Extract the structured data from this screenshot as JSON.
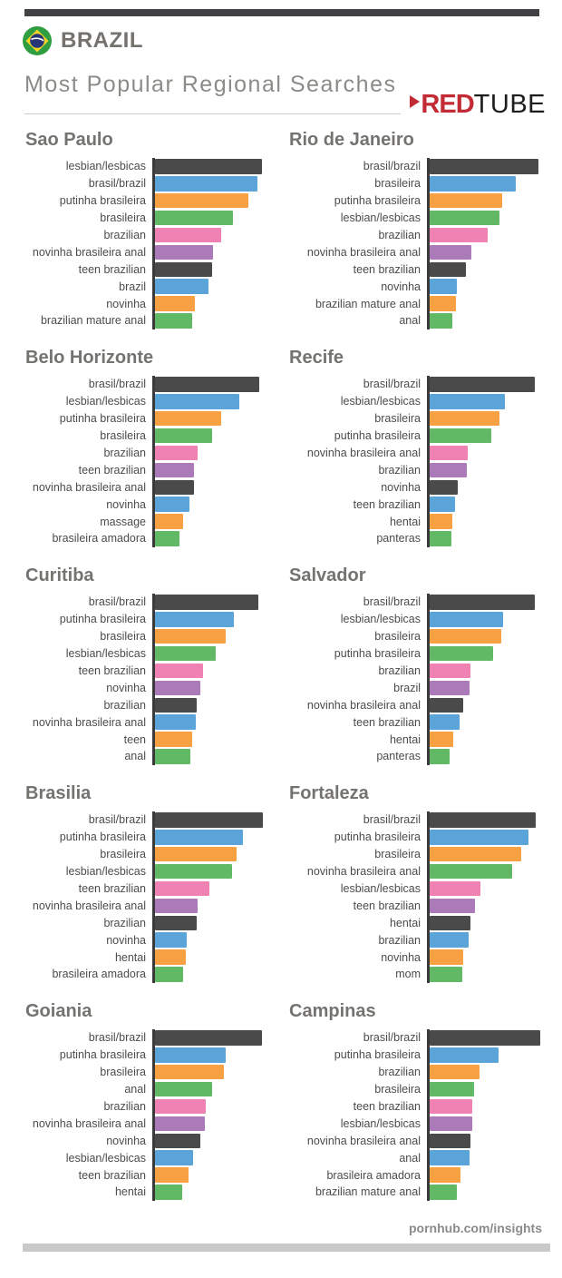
{
  "header": {
    "brand": "BRAZIL",
    "subtitle": "Most Popular Regional Searches",
    "flag_icon": "brazil-flag-icon",
    "logo": {
      "part1": "RED",
      "part2": "TUBE",
      "play_icon": "play-triangle-icon"
    }
  },
  "footer": {
    "url_text": "pornhub.com/insights"
  },
  "colors": {
    "topbar": "#414042",
    "bottom_bar": "#c9c9c9",
    "chart_title_gray": "#757370",
    "subtitle_gray": "#8b8b87",
    "label_gray": "#4c4c4c",
    "axis": "#3a3a3a",
    "logo_red": "#c22b33",
    "logo_dark": "#1d1d1b",
    "flag_green": "#2f9e41",
    "flag_yellow": "#f6d32b",
    "flag_blue": "#253575",
    "bar_palette": {
      "dark": "#4a4a4a",
      "blue": "#5ba4d9",
      "orange": "#f7a143",
      "green": "#62b965",
      "pink": "#ef82b3",
      "purple": "#ab7ab8"
    },
    "bar_color_cycle": [
      "dark",
      "blue",
      "orange",
      "green",
      "pink",
      "purple"
    ]
  },
  "chart_data": [
    {
      "type": "bar",
      "title": "Sao Paulo",
      "orientation": "horizontal",
      "unit": "relative search volume (bar length in px; no numeric axis shown)",
      "categories": [
        "lesbian/lesbicas",
        "brasil/brazil",
        "putinha brasileira",
        "brasileira",
        "brazilian",
        "novinha brasileira anal",
        "teen brazilian",
        "brazil",
        "novinha",
        "brazilian mature anal"
      ],
      "values": [
        118,
        113,
        103,
        86,
        73,
        64,
        63,
        59,
        44,
        41
      ]
    },
    {
      "type": "bar",
      "title": "Rio de Janeiro",
      "orientation": "horizontal",
      "unit": "relative search volume (bar length in px; no numeric axis shown)",
      "categories": [
        "brasil/brazil",
        "brasileira",
        "putinha brasileira",
        "lesbian/lesbicas",
        "brazilian",
        "novinha brasileira anal",
        "teen brazilian",
        "novinha",
        "brazilian mature anal",
        "anal"
      ],
      "values": [
        120,
        95,
        80,
        77,
        64,
        46,
        40,
        30,
        29,
        25
      ]
    },
    {
      "type": "bar",
      "title": "Belo Horizonte",
      "orientation": "horizontal",
      "unit": "relative search volume (bar length in px; no numeric axis shown)",
      "categories": [
        "brasil/brazil",
        "lesbian/lesbicas",
        "putinha brasileira",
        "brasileira",
        "brazilian",
        "teen brazilian",
        "novinha brasileira anal",
        "novinha",
        "massage",
        "brasileira amadora"
      ],
      "values": [
        115,
        93,
        73,
        63,
        47,
        43,
        43,
        38,
        31,
        27
      ]
    },
    {
      "type": "bar",
      "title": "Recife",
      "orientation": "horizontal",
      "unit": "relative search volume (bar length in px; no numeric axis shown)",
      "categories": [
        "brasil/brazil",
        "lesbian/lesbicas",
        "brasileira",
        "putinha brasileira",
        "novinha brasileira anal",
        "brazilian",
        "novinha",
        "teen brazilian",
        "hentai",
        "panteras"
      ],
      "values": [
        116,
        83,
        77,
        68,
        42,
        41,
        31,
        28,
        25,
        24
      ]
    },
    {
      "type": "bar",
      "title": "Curitiba",
      "orientation": "horizontal",
      "unit": "relative search volume (bar length in px; no numeric axis shown)",
      "categories": [
        "brasil/brazil",
        "putinha brasileira",
        "brasileira",
        "lesbian/lesbicas",
        "teen brazilian",
        "novinha",
        "brazilian",
        "novinha brasileira anal",
        "teen",
        "anal"
      ],
      "values": [
        114,
        87,
        78,
        67,
        53,
        50,
        46,
        45,
        41,
        39
      ]
    },
    {
      "type": "bar",
      "title": "Salvador",
      "orientation": "horizontal",
      "unit": "relative search volume (bar length in px; no numeric axis shown)",
      "categories": [
        "brasil/brazil",
        "lesbian/lesbicas",
        "brasileira",
        "putinha brasileira",
        "brazilian",
        "brazil",
        "novinha brasileira anal",
        "teen brazilian",
        "hentai",
        "panteras"
      ],
      "values": [
        116,
        81,
        79,
        70,
        45,
        44,
        37,
        33,
        26,
        22
      ]
    },
    {
      "type": "bar",
      "title": "Brasilia",
      "orientation": "horizontal",
      "unit": "relative search volume (bar length in px; no numeric axis shown)",
      "categories": [
        "brasil/brazil",
        "putinha brasileira",
        "brasileira",
        "lesbian/lesbicas",
        "teen brazilian",
        "novinha brasileira anal",
        "brazilian",
        "novinha",
        "hentai",
        "brasileira amadora"
      ],
      "values": [
        119,
        97,
        90,
        85,
        60,
        47,
        46,
        35,
        34,
        31
      ]
    },
    {
      "type": "bar",
      "title": "Fortaleza",
      "orientation": "horizontal",
      "unit": "relative search volume (bar length in px; no numeric axis shown)",
      "categories": [
        "brasil/brazil",
        "putinha brasileira",
        "brasileira",
        "novinha brasileira anal",
        "lesbian/lesbicas",
        "teen brazilian",
        "hentai",
        "brazilian",
        "novinha",
        "mom"
      ],
      "values": [
        117,
        109,
        101,
        91,
        56,
        50,
        45,
        43,
        37,
        36
      ]
    },
    {
      "type": "bar",
      "title": "Goiania",
      "orientation": "horizontal",
      "unit": "relative search volume (bar length in px; no numeric axis shown)",
      "categories": [
        "brasil/brazil",
        "putinha brasileira",
        "brasileira",
        "anal",
        "brazilian",
        "novinha brasileira anal",
        "novinha",
        "lesbian/lesbicas",
        "teen brazilian",
        "hentai"
      ],
      "values": [
        118,
        78,
        76,
        63,
        56,
        55,
        50,
        42,
        37,
        30
      ]
    },
    {
      "type": "bar",
      "title": "Campinas",
      "orientation": "horizontal",
      "unit": "relative search volume (bar length in px; no numeric axis shown)",
      "categories": [
        "brasil/brazil",
        "putinha brasileira",
        "brazilian",
        "brasileira",
        "teen brazilian",
        "lesbian/lesbicas",
        "novinha brasileira anal",
        "anal",
        "brasileira amadora",
        "brazilian mature anal"
      ],
      "values": [
        122,
        76,
        55,
        49,
        47,
        47,
        45,
        44,
        34,
        30
      ]
    }
  ]
}
